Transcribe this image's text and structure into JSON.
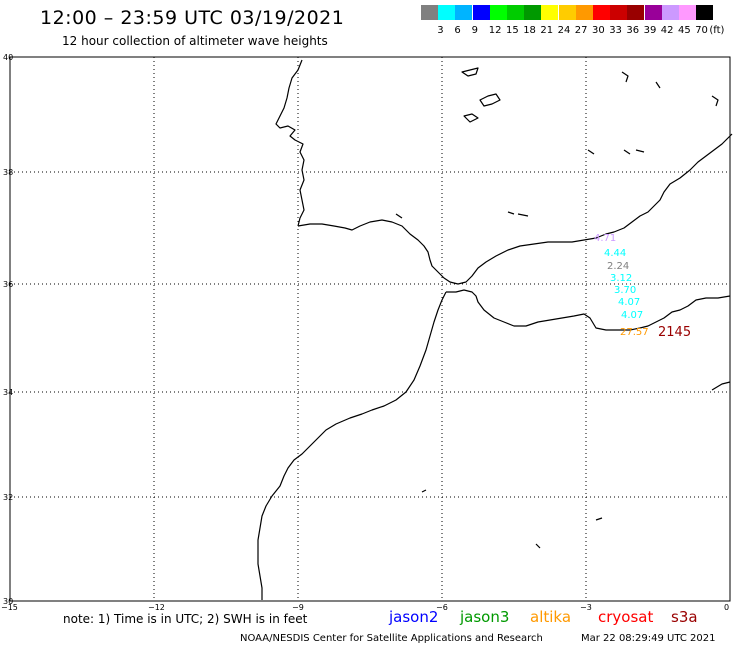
{
  "title": "12:00 – 23:59 UTC 03/19/2021",
  "subtitle": "12 hour collection of altimeter wave heights",
  "legend": {
    "unit": "(ft)",
    "bins": [
      {
        "label": "",
        "color": "#808080"
      },
      {
        "label": "3",
        "color": "#00ffff"
      },
      {
        "label": "6",
        "color": "#00b4ff"
      },
      {
        "label": "9",
        "color": "#0000ff"
      },
      {
        "label": "12",
        "color": "#00ff00"
      },
      {
        "label": "15",
        "color": "#00cc00"
      },
      {
        "label": "18",
        "color": "#009900"
      },
      {
        "label": "21",
        "color": "#ffff00"
      },
      {
        "label": "24",
        "color": "#ffcc00"
      },
      {
        "label": "27",
        "color": "#ff9900"
      },
      {
        "label": "30",
        "color": "#ff0000"
      },
      {
        "label": "33",
        "color": "#cc0000"
      },
      {
        "label": "36",
        "color": "#990000"
      },
      {
        "label": "39",
        "color": "#990099"
      },
      {
        "label": "42",
        "color": "#cc99ff"
      },
      {
        "label": "45",
        "color": "#ff99ff"
      },
      {
        "label": "70",
        "color": "#000000"
      }
    ]
  },
  "axes": {
    "lat_labels": [
      "40",
      "38",
      "36",
      "34",
      "32",
      "30"
    ],
    "lon_labels": [
      "−15",
      "−12",
      "−9",
      "−6",
      "−3",
      "0"
    ]
  },
  "observations": [
    {
      "text": "4.71",
      "color": "#cc99ff"
    },
    {
      "text": "4.44",
      "color": "#00ffff"
    },
    {
      "text": "2.24",
      "color": "#808080"
    },
    {
      "text": "3.12",
      "color": "#00ffff"
    },
    {
      "text": "3.70",
      "color": "#00ffff"
    },
    {
      "text": "4.07",
      "color": "#00ffff"
    },
    {
      "text": "4.07",
      "color": "#00ffff"
    },
    {
      "text": "27.57",
      "color": "#ff9900"
    },
    {
      "text": "2145",
      "color": "#990000"
    }
  ],
  "note": "note: 1) Time is in UTC; 2) SWH is in feet",
  "satellites": [
    {
      "name": "jason2",
      "color": "#0000ff"
    },
    {
      "name": "jason3",
      "color": "#009900"
    },
    {
      "name": "altika",
      "color": "#ff9900"
    },
    {
      "name": "cryosat",
      "color": "#ff0000"
    },
    {
      "name": "s3a",
      "color": "#990000"
    }
  ],
  "credit": "NOAA/NESDIS Center for Satellite Applications and Research",
  "timestamp": "Mar 22 08:29:49 UTC 2021"
}
